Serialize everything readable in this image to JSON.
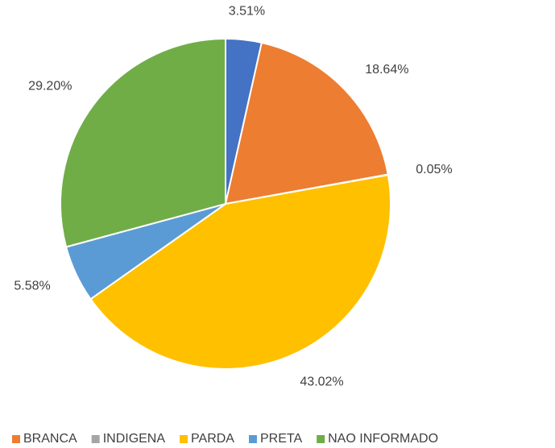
{
  "chart_data": {
    "type": "pie",
    "categories": [
      null,
      "BRANCA",
      "INDIGENA",
      "PARDA",
      "PRETA",
      "NAO INFORMADO"
    ],
    "values": [
      3.51,
      18.64,
      0.05,
      43.02,
      5.58,
      29.2
    ],
    "value_labels": [
      "3.51%",
      "18.64%",
      "0.05%",
      "43.02%",
      "5.58%",
      "29.20%"
    ],
    "colors": [
      "#4472c4",
      "#ed7d31",
      "#a5a5a5",
      "#ffc000",
      "#5b9bd5",
      "#70ad47"
    ],
    "legend": "bottom"
  }
}
